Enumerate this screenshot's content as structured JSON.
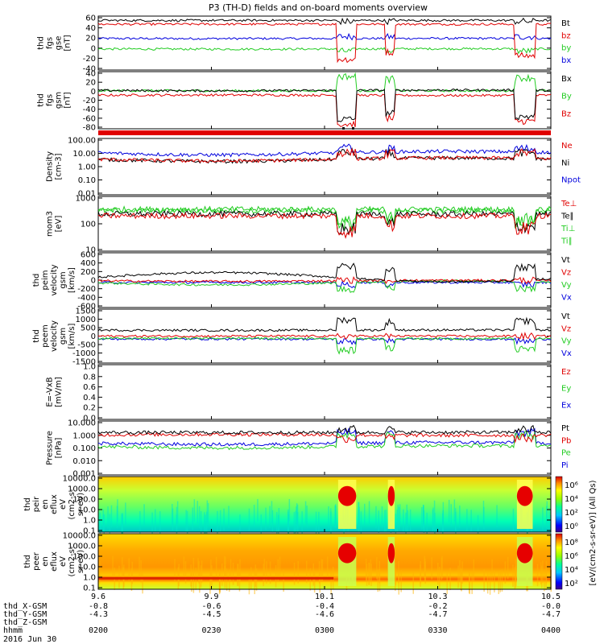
{
  "title": "P3 (TH-D) fields and on-board moments overview",
  "date": "2016 Jun 30",
  "colors": {
    "black": "#000000",
    "red": "#e00000",
    "green": "#22cc22",
    "blue": "#0000dd"
  },
  "panels": [
    {
      "id": "fgs-gse",
      "ylabel": [
        "thd",
        "fgs",
        "gse",
        "[nT]"
      ],
      "yticks": [
        "60",
        "40",
        "20",
        "0",
        "-20",
        "-40"
      ],
      "ylim": [
        -40,
        60
      ],
      "type": "line",
      "legend": [
        {
          "text": "Bt",
          "color": "#000000"
        },
        {
          "text": "bz",
          "color": "#e00000"
        },
        {
          "text": "by",
          "color": "#22cc22"
        },
        {
          "text": "bx",
          "color": "#0000dd"
        }
      ]
    },
    {
      "id": "fgs-gsm",
      "ylabel": [
        "thd",
        "fgs",
        "gsm",
        "[nT]"
      ],
      "yticks": [
        "40",
        "20",
        "0",
        "-20",
        "-40",
        "-60",
        "-80"
      ],
      "ylim": [
        -80,
        40
      ],
      "type": "line",
      "legend": [
        {
          "text": "Bx",
          "color": "#000000"
        },
        {
          "text": "By",
          "color": "#22cc22"
        },
        {
          "text": "Bz",
          "color": "#e00000"
        }
      ]
    },
    {
      "id": "density",
      "ylabel": [
        "Density",
        "[cm-3]"
      ],
      "yticks": [
        "100.00",
        "10.00",
        "1.00",
        "0.10",
        "0.01"
      ],
      "ylim": [
        0.01,
        100
      ],
      "log": true,
      "type": "line",
      "legend": [
        {
          "text": "Ne",
          "color": "#e00000"
        },
        {
          "text": "Ni",
          "color": "#000000"
        },
        {
          "text": "Npot",
          "color": "#0000dd"
        }
      ]
    },
    {
      "id": "temperature",
      "ylabel": [
        "mom3",
        "[eV]"
      ],
      "yticks": [
        "1000",
        "100",
        "10"
      ],
      "ylim": [
        10,
        3000
      ],
      "log": true,
      "type": "line",
      "legend": [
        {
          "text": "Te⊥",
          "color": "#e00000"
        },
        {
          "text": "Te∥",
          "color": "#000000"
        },
        {
          "text": "Ti⊥",
          "color": "#22cc22"
        },
        {
          "text": "Ti∥",
          "color": "#22cc22"
        }
      ]
    },
    {
      "id": "peim-velocity",
      "ylabel": [
        "thd",
        "peim",
        "velocity",
        "gsm",
        "[km/s]"
      ],
      "yticks": [
        "600",
        "400",
        "200",
        "0",
        "-200",
        "-400",
        "-600"
      ],
      "ylim": [
        -600,
        600
      ],
      "type": "line",
      "legend": [
        {
          "text": "Vt",
          "color": "#000000"
        },
        {
          "text": "Vz",
          "color": "#e00000"
        },
        {
          "text": "Vy",
          "color": "#22cc22"
        },
        {
          "text": "Vx",
          "color": "#0000dd"
        }
      ]
    },
    {
      "id": "peem-velocity",
      "ylabel": [
        "thd",
        "peem",
        "velocity",
        "gsm",
        "[km/s]"
      ],
      "yticks": [
        "1500",
        "1000",
        "500",
        "0",
        "-500",
        "-1000",
        "-1500"
      ],
      "ylim": [
        -1500,
        1500
      ],
      "type": "line",
      "legend": [
        {
          "text": "Vt",
          "color": "#000000"
        },
        {
          "text": "Vz",
          "color": "#e00000"
        },
        {
          "text": "Vy",
          "color": "#22cc22"
        },
        {
          "text": "Vx",
          "color": "#0000dd"
        }
      ]
    },
    {
      "id": "efield",
      "ylabel": [
        "E=-VxB",
        "[mV/m]"
      ],
      "yticks": [
        "1.0",
        "0.8",
        "0.6",
        "0.4",
        "0.2",
        "0.0"
      ],
      "ylim": [
        0,
        1
      ],
      "type": "empty",
      "legend": [
        {
          "text": "Ez",
          "color": "#e00000"
        },
        {
          "text": "Ey",
          "color": "#22cc22"
        },
        {
          "text": "Ex",
          "color": "#0000dd"
        }
      ]
    },
    {
      "id": "pressure",
      "ylabel": [
        "Pressure",
        "[nPa]"
      ],
      "yticks": [
        "10.000",
        "1.000",
        "0.100",
        "0.010",
        "0.001"
      ],
      "ylim": [
        0.001,
        10
      ],
      "log": true,
      "type": "line",
      "legend": [
        {
          "text": "Pt",
          "color": "#000000"
        },
        {
          "text": "Pb",
          "color": "#e00000"
        },
        {
          "text": "Pe",
          "color": "#22cc22"
        },
        {
          "text": "Pi",
          "color": "#0000dd"
        }
      ]
    },
    {
      "id": "peir-spec",
      "ylabel": [
        "thd",
        "peir",
        "en",
        "eflux",
        "eV",
        "(cm2-s-",
        "sr-eV)"
      ],
      "yticks": [
        "10000.0",
        "1000.0",
        "100.0",
        "10.0",
        "1.0",
        "0.1"
      ],
      "ylim": [
        0.1,
        30000
      ],
      "log": true,
      "type": "spec",
      "legend": []
    },
    {
      "id": "peer-spec",
      "ylabel": [
        "thd",
        "peer",
        "en",
        "eflux",
        "eV",
        "(cm2-s-",
        "sr-eV)"
      ],
      "yticks": [
        "10000.0",
        "1000.0",
        "100.0",
        "10.0",
        "1.0",
        "0.1"
      ],
      "ylim": [
        0.1,
        30000
      ],
      "log": true,
      "type": "spec",
      "legend": []
    }
  ],
  "colorbar": {
    "label": "[eV/(cm2-s-sr-eV)] (All Qs)",
    "ticks_a": [
      "10⁶",
      "10⁴",
      "10²",
      "10⁰"
    ],
    "ticks_b": [
      "10⁸",
      "10⁶",
      "10⁴",
      "10²"
    ]
  },
  "xaxis": {
    "ticks": [
      "9.6",
      "9.9",
      "10.1",
      "10.3",
      "10.5"
    ],
    "rows": [
      {
        "label": "thd_X-GSM",
        "values": [
          "-0.8",
          "-0.6",
          "-0.4",
          "-0.2",
          "-0.0"
        ]
      },
      {
        "label": "thd_Y-GSM",
        "values": [
          "-4.3",
          "-4.5",
          "-4.6",
          "-4.7",
          "-4.7"
        ]
      },
      {
        "label": "thd_Z-GSM",
        "values": [
          "",
          "",
          "",
          "",
          ""
        ]
      },
      {
        "label": "hhmm",
        "values": [
          "0200",
          "0230",
          "0300",
          "0330",
          "0400"
        ]
      }
    ]
  },
  "chart_data": {
    "type": "line",
    "title": "P3 (TH-D) fields and on-board moments overview",
    "x_label": "hhmm",
    "x": [
      "0200",
      "0230",
      "0300",
      "0330",
      "0400"
    ],
    "panels": [
      {
        "name": "fgs gse [nT]",
        "series": [
          {
            "name": "Bt",
            "values": [
              55,
              52,
              50,
              48,
              45
            ]
          },
          {
            "name": "bz",
            "values": [
              48,
              45,
              -20,
              44,
              38
            ]
          },
          {
            "name": "by",
            "values": [
              0,
              -2,
              -5,
              0,
              -3
            ]
          },
          {
            "name": "bx",
            "values": [
              20,
              18,
              22,
              24,
              15
            ]
          }
        ]
      },
      {
        "name": "fgs gsm [nT]",
        "series": [
          {
            "name": "Bx",
            "values": [
              5,
              -2,
              -60,
              -5,
              -10
            ]
          },
          {
            "name": "By",
            "values": [
              0,
              0,
              30,
              0,
              0
            ]
          },
          {
            "name": "Bz",
            "values": [
              -5,
              -8,
              -70,
              -10,
              -20
            ]
          }
        ]
      },
      {
        "name": "Density [cm-3]",
        "series": [
          {
            "name": "Ne",
            "values": [
              0.5,
              0.5,
              10,
              0.5,
              10
            ]
          },
          {
            "name": "Ni",
            "values": [
              0.3,
              0.3,
              10,
              0.3,
              10
            ]
          },
          {
            "name": "Npot",
            "values": [
              0.6,
              0.6,
              20,
              0.6,
              30
            ]
          }
        ]
      },
      {
        "name": "mom3 [eV]",
        "series": [
          {
            "name": "Te⊥",
            "values": [
              500,
              400,
              80,
              300,
              150
            ]
          },
          {
            "name": "Te∥",
            "values": [
              600,
              500,
              100,
              350,
              200
            ]
          },
          {
            "name": "Ti⊥",
            "values": [
              800,
              700,
              150,
              500,
              400
            ]
          },
          {
            "name": "Ti∥",
            "values": [
              900,
              800,
              200,
              600,
              500
            ]
          }
        ]
      },
      {
        "name": "peim velocity gsm [km/s]",
        "series": [
          {
            "name": "Vt",
            "values": [
              50,
              400,
              300,
              100,
              100
            ]
          },
          {
            "name": "Vz",
            "values": [
              0,
              -50,
              0,
              0,
              -50
            ]
          },
          {
            "name": "Vy",
            "values": [
              -20,
              -200,
              -200,
              -50,
              -150
            ]
          },
          {
            "name": "Vx",
            "values": [
              -30,
              -50,
              -100,
              -20,
              -100
            ]
          }
        ]
      },
      {
        "name": "peem velocity gsm [km/s]",
        "series": [
          {
            "name": "Vt",
            "values": [
              300,
              300,
              900,
              300,
              400
            ]
          },
          {
            "name": "Vz",
            "values": [
              0,
              0,
              0,
              0,
              0
            ]
          },
          {
            "name": "Vy",
            "values": [
              -100,
              -100,
              -800,
              -100,
              -200
            ]
          },
          {
            "name": "Vx",
            "values": [
              -150,
              -150,
              -300,
              -100,
              -200
            ]
          }
        ]
      },
      {
        "name": "Pressure [nPa]",
        "series": [
          {
            "name": "Pt",
            "values": [
              1.5,
              1.3,
              2.5,
              1.3,
              1.2
            ]
          },
          {
            "name": "Pb",
            "values": [
              1.3,
              1.2,
              0.5,
              1.2,
              0.1
            ]
          },
          {
            "name": "Pe",
            "values": [
              0.05,
              0.05,
              1.0,
              0.05,
              0.3
            ]
          },
          {
            "name": "Pi",
            "values": [
              0.1,
              0.1,
              1.5,
              0.1,
              0.5
            ]
          }
        ]
      }
    ]
  }
}
